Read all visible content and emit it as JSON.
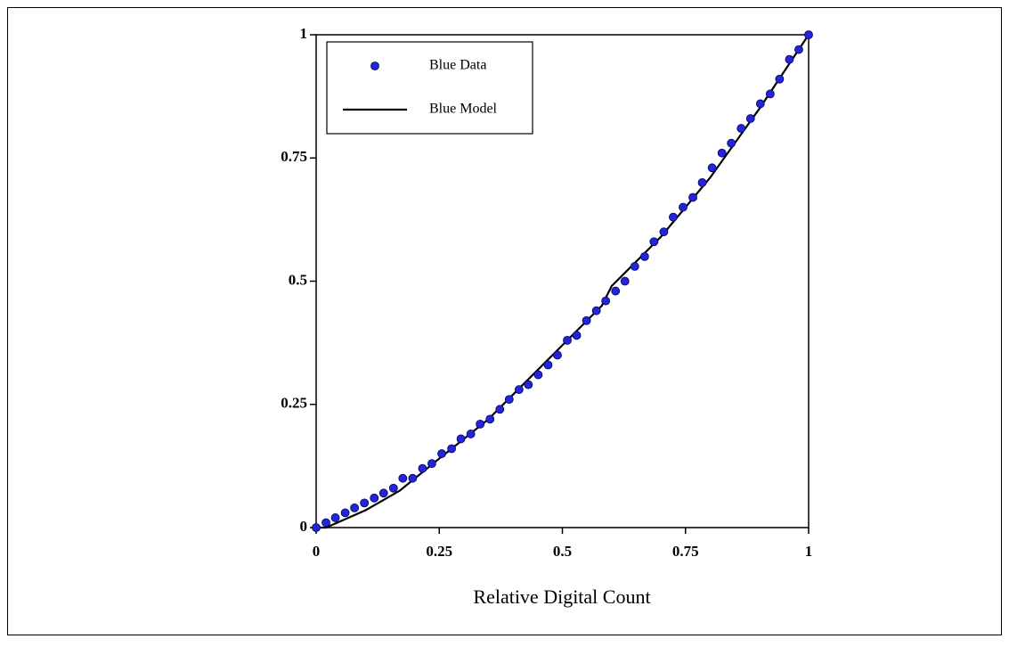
{
  "chart_data": {
    "type": "scatter",
    "xlabel": "Relative Digital Count",
    "xlim": [
      0,
      1
    ],
    "ylim": [
      0,
      1
    ],
    "xticks": [
      0,
      0.25,
      0.5,
      0.75,
      1
    ],
    "yticks": [
      0,
      0.25,
      0.5,
      0.75,
      1
    ],
    "legend": "upper left",
    "series": [
      {
        "name": "Blue Data",
        "type": "scatter",
        "color": "#2424d8",
        "x": [
          0,
          0.02,
          0.039,
          0.059,
          0.078,
          0.098,
          0.118,
          0.137,
          0.157,
          0.176,
          0.196,
          0.216,
          0.235,
          0.255,
          0.275,
          0.294,
          0.314,
          0.333,
          0.353,
          0.373,
          0.392,
          0.412,
          0.431,
          0.451,
          0.471,
          0.49,
          0.51,
          0.529,
          0.549,
          0.569,
          0.588,
          0.608,
          0.627,
          0.647,
          0.667,
          0.686,
          0.706,
          0.725,
          0.745,
          0.765,
          0.784,
          0.804,
          0.824,
          0.843,
          0.863,
          0.882,
          0.902,
          0.922,
          0.941,
          0.961,
          0.98,
          1
        ],
        "values": [
          0,
          0.01,
          0.02,
          0.03,
          0.04,
          0.05,
          0.06,
          0.07,
          0.08,
          0.1,
          0.1,
          0.12,
          0.13,
          0.15,
          0.16,
          0.18,
          0.19,
          0.21,
          0.22,
          0.24,
          0.26,
          0.28,
          0.29,
          0.31,
          0.33,
          0.35,
          0.38,
          0.39,
          0.42,
          0.44,
          0.46,
          0.48,
          0.5,
          0.53,
          0.55,
          0.58,
          0.6,
          0.63,
          0.65,
          0.67,
          0.7,
          0.73,
          0.76,
          0.78,
          0.81,
          0.83,
          0.86,
          0.88,
          0.91,
          0.95,
          0.97,
          1
        ]
      },
      {
        "name": "Blue Model",
        "type": "line",
        "color": "#000000",
        "x": [
          0,
          0.02,
          0.1,
          0.17,
          0.25,
          0.35,
          0.45,
          0.5,
          0.58,
          0.6,
          0.7,
          0.8,
          0.9,
          1
        ],
        "values": [
          0,
          0,
          0.035,
          0.075,
          0.14,
          0.22,
          0.32,
          0.37,
          0.45,
          0.49,
          0.59,
          0.71,
          0.85,
          1
        ]
      }
    ]
  }
}
